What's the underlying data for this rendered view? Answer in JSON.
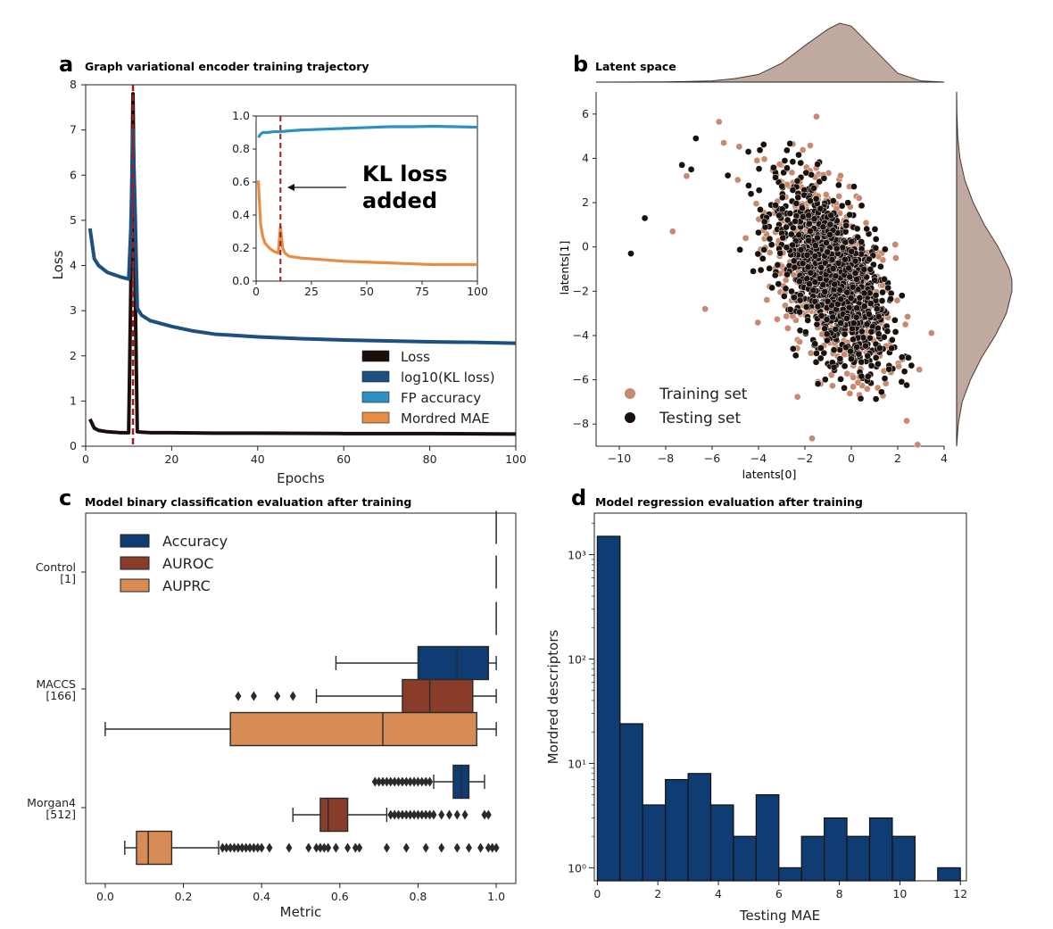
{
  "colors": {
    "loss": "#1a0e0a",
    "kl": "#1d4f7f",
    "fp": "#2f8fc0",
    "mordred": "#e78c45",
    "vline": "#a11d1d",
    "train": "#c88a6e",
    "test": "#1a100c",
    "kde": "#b9a196",
    "accuracy": "#0f3c73",
    "auroc": "#8a3c2a",
    "auprc": "#d78c55",
    "hist": "#0f3c73"
  },
  "chart_data": [
    {
      "id": "a",
      "type": "line",
      "panel_letter": "a",
      "title": "Graph variational encoder training trajectory",
      "xlabel": "Epochs",
      "ylabel": "Loss",
      "xlim": [
        0,
        100
      ],
      "ylim": [
        0,
        8
      ],
      "xticks": [
        0,
        20,
        40,
        60,
        80,
        100
      ],
      "yticks": [
        0,
        1,
        2,
        3,
        4,
        5,
        6,
        7,
        8
      ],
      "vline_x": 11,
      "legend_position": "lower-right",
      "series": [
        {
          "name": "Loss",
          "key": "loss",
          "x": [
            1,
            2,
            3,
            5,
            8,
            10,
            10.5,
            11,
            11.5,
            12,
            13,
            15,
            20,
            30,
            40,
            60,
            80,
            100
          ],
          "y": [
            0.6,
            0.4,
            0.35,
            0.32,
            0.3,
            0.3,
            3.5,
            7.8,
            3.5,
            0.32,
            0.31,
            0.3,
            0.3,
            0.29,
            0.29,
            0.28,
            0.28,
            0.27
          ]
        },
        {
          "name": "log10(KL loss)",
          "key": "kl",
          "x": [
            1,
            2,
            3,
            5,
            8,
            10,
            10.5,
            11,
            11.5,
            12,
            13,
            15,
            20,
            25,
            30,
            40,
            50,
            60,
            70,
            80,
            90,
            100
          ],
          "y": [
            4.82,
            4.15,
            4.0,
            3.85,
            3.75,
            3.7,
            4.8,
            7.0,
            5.2,
            3.05,
            2.9,
            2.78,
            2.65,
            2.55,
            2.48,
            2.42,
            2.38,
            2.35,
            2.33,
            2.31,
            2.3,
            2.28
          ]
        }
      ]
    },
    {
      "id": "a-inset",
      "type": "line",
      "xlim": [
        0,
        100
      ],
      "ylim": [
        0,
        1
      ],
      "xticks": [
        0,
        25,
        50,
        75,
        100
      ],
      "yticks": [
        0.0,
        0.2,
        0.4,
        0.6,
        0.8,
        1.0
      ],
      "vline_x": 11,
      "annotation": "KL loss\nadded",
      "series": [
        {
          "name": "FP accuracy",
          "key": "fp",
          "x": [
            1,
            2,
            3,
            5,
            8,
            11,
            15,
            20,
            30,
            40,
            50,
            60,
            70,
            80,
            90,
            100
          ],
          "y": [
            0.87,
            0.89,
            0.9,
            0.9,
            0.905,
            0.905,
            0.91,
            0.915,
            0.92,
            0.925,
            0.93,
            0.935,
            0.935,
            0.938,
            0.935,
            0.932
          ]
        },
        {
          "name": "Mordred MAE",
          "key": "mordred",
          "x": [
            1,
            2,
            3,
            4,
            6,
            8,
            10,
            11,
            12,
            13,
            15,
            20,
            30,
            40,
            50,
            60,
            70,
            80,
            90,
            100
          ],
          "y": [
            0.61,
            0.35,
            0.27,
            0.23,
            0.2,
            0.18,
            0.17,
            0.33,
            0.2,
            0.17,
            0.15,
            0.14,
            0.13,
            0.12,
            0.115,
            0.11,
            0.105,
            0.1,
            0.1,
            0.1
          ]
        }
      ]
    },
    {
      "id": "b",
      "type": "scatter",
      "panel_letter": "b",
      "title": "Latent space",
      "xlabel": "latents[0]",
      "ylabel": "latents[1]",
      "xlim": [
        -11,
        4
      ],
      "ylim": [
        -9,
        7
      ],
      "xticks": [
        -10,
        -8,
        -6,
        -4,
        -2,
        0,
        2,
        4
      ],
      "yticks": [
        -8,
        -6,
        -4,
        -2,
        0,
        2,
        4,
        6
      ],
      "legend_position": "lower-left",
      "series": [
        {
          "name": "Training set",
          "key": "train",
          "center": [
            -0.9,
            -1.3
          ],
          "spread": [
            1.2,
            2.1
          ],
          "outliers": [
            [
              -7.7,
              0.7
            ],
            [
              -6.3,
              -2.8
            ],
            [
              -7.1,
              3.2
            ],
            [
              -5.5,
              4.7
            ]
          ]
        },
        {
          "name": "Testing set",
          "key": "test",
          "center": [
            -0.9,
            -1.3
          ],
          "spread": [
            1.2,
            2.1
          ],
          "outliers": [
            [
              -9.5,
              -0.3
            ],
            [
              -8.9,
              1.3
            ],
            [
              -6.9,
              3.5
            ],
            [
              -6.7,
              4.9
            ],
            [
              -7.3,
              3.7
            ]
          ]
        }
      ],
      "marginal_x": {
        "x": [
          -11,
          -8,
          -6,
          -5,
          -4,
          -3,
          -2,
          -1,
          -0.5,
          0,
          1,
          2,
          3,
          4
        ],
        "density": [
          0,
          0.003,
          0.02,
          0.06,
          0.13,
          0.32,
          0.62,
          0.9,
          1.0,
          0.95,
          0.55,
          0.15,
          0.02,
          0
        ]
      },
      "marginal_y": {
        "y": [
          -9,
          -8,
          -7,
          -6,
          -5,
          -4,
          -3,
          -2,
          -1.5,
          -1,
          0,
          1,
          2,
          3,
          4,
          5,
          6,
          7
        ],
        "density": [
          0,
          0.03,
          0.1,
          0.25,
          0.45,
          0.7,
          0.9,
          1.0,
          1.0,
          0.95,
          0.75,
          0.5,
          0.3,
          0.15,
          0.06,
          0.02,
          0.005,
          0
        ]
      }
    },
    {
      "id": "c",
      "type": "box",
      "panel_letter": "c",
      "title": "Model binary classification evaluation after training",
      "xlabel": "Metric",
      "xlim": [
        -0.05,
        1.05
      ],
      "xticks": [
        0.0,
        0.2,
        0.4,
        0.6,
        0.8,
        1.0
      ],
      "xticklabels": [
        "0.0",
        "0.2",
        "0.4",
        "0.6",
        "0.8",
        "1.0"
      ],
      "categories": [
        "Control\n[1]",
        "MACCS\n[166]",
        "Morgan4\n[512]"
      ],
      "legend_position": "top-left",
      "series": [
        {
          "name": "Accuracy",
          "key": "accuracy"
        },
        {
          "name": "AUROC",
          "key": "auroc"
        },
        {
          "name": "AUPRC",
          "key": "auprc"
        }
      ],
      "boxes": [
        {
          "category": 0,
          "metric": "accuracy",
          "whislo": 1.0,
          "q1": 1.0,
          "med": 1.0,
          "q3": 1.0,
          "whishi": 1.0,
          "fliers": []
        },
        {
          "category": 0,
          "metric": "auroc",
          "whislo": 1.0,
          "q1": 1.0,
          "med": 1.0,
          "q3": 1.0,
          "whishi": 1.0,
          "fliers": []
        },
        {
          "category": 0,
          "metric": "auprc",
          "whislo": 1.0,
          "q1": 1.0,
          "med": 1.0,
          "q3": 1.0,
          "whishi": 1.0,
          "fliers": []
        },
        {
          "category": 1,
          "metric": "accuracy",
          "whislo": 0.59,
          "q1": 0.8,
          "med": 0.9,
          "q3": 0.98,
          "whishi": 1.0,
          "fliers": []
        },
        {
          "category": 1,
          "metric": "auroc",
          "whislo": 0.54,
          "q1": 0.76,
          "med": 0.83,
          "q3": 0.94,
          "whishi": 1.0,
          "fliers": [
            0.34,
            0.38,
            0.44,
            0.48
          ]
        },
        {
          "category": 1,
          "metric": "auprc",
          "whislo": 0.0,
          "q1": 0.32,
          "med": 0.71,
          "q3": 0.95,
          "whishi": 1.0,
          "fliers": []
        },
        {
          "category": 2,
          "metric": "accuracy",
          "whislo": 0.84,
          "q1": 0.89,
          "med": 0.91,
          "q3": 0.93,
          "whishi": 0.97,
          "fliers": [
            0.69,
            0.7,
            0.71,
            0.72,
            0.73,
            0.74,
            0.75,
            0.76,
            0.77,
            0.78,
            0.79,
            0.8,
            0.81,
            0.82,
            0.83
          ]
        },
        {
          "category": 2,
          "metric": "auroc",
          "whislo": 0.48,
          "q1": 0.55,
          "med": 0.57,
          "q3": 0.62,
          "whishi": 0.72,
          "fliers": [
            0.73,
            0.74,
            0.75,
            0.76,
            0.77,
            0.78,
            0.79,
            0.8,
            0.81,
            0.82,
            0.83,
            0.84,
            0.86,
            0.88,
            0.9,
            0.92,
            0.97,
            0.98
          ]
        },
        {
          "category": 2,
          "metric": "auprc",
          "whislo": 0.05,
          "q1": 0.08,
          "med": 0.11,
          "q3": 0.17,
          "whishi": 0.29,
          "fliers": [
            0.3,
            0.31,
            0.32,
            0.33,
            0.34,
            0.35,
            0.36,
            0.37,
            0.38,
            0.39,
            0.4,
            0.42,
            0.47,
            0.52,
            0.54,
            0.55,
            0.56,
            0.57,
            0.59,
            0.62,
            0.64,
            0.65,
            0.72,
            0.77,
            0.82,
            0.86,
            0.9,
            0.93,
            0.96,
            0.98,
            0.99,
            1.0
          ]
        }
      ]
    },
    {
      "id": "d",
      "type": "bar",
      "panel_letter": "d",
      "title": "Model regression evaluation after training",
      "xlabel": "Testing MAE",
      "ylabel": "Mordred descriptors",
      "yscale": "log",
      "xlim": [
        -0.1,
        12.2
      ],
      "ylim": [
        0.75,
        2500
      ],
      "xticks": [
        0,
        2,
        4,
        6,
        8,
        10,
        12
      ],
      "yticks": [
        1,
        10,
        100,
        1000
      ],
      "yticklabels": [
        "10⁰",
        "10¹",
        "10²",
        "10³"
      ],
      "bin_edges": [
        0,
        0.75,
        1.5,
        2.25,
        3.0,
        3.75,
        4.5,
        5.25,
        6.0,
        6.75,
        7.5,
        8.25,
        9.0,
        9.75,
        10.5,
        11.25,
        12.0
      ],
      "values": [
        1500,
        24,
        4,
        7,
        8,
        4,
        2,
        5,
        1,
        2,
        3,
        2,
        3,
        2,
        0,
        1
      ]
    }
  ]
}
